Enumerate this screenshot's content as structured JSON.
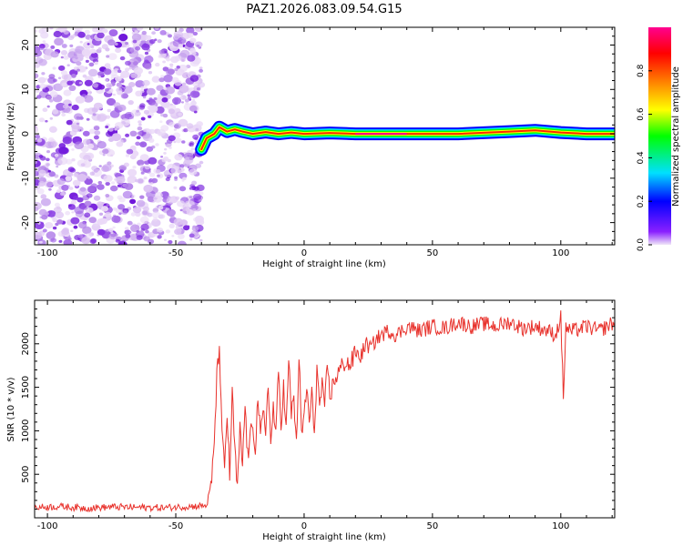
{
  "title": "PAZ1.2026.083.09.54.G15",
  "chart_data": [
    {
      "type": "heatmap",
      "name": "spectrogram",
      "xlabel": "Height of straight line (km)",
      "ylabel": "Frequency (Hz)",
      "xlim": [
        -105,
        121
      ],
      "ylim": [
        -25,
        24
      ],
      "xticks": [
        -100,
        -50,
        0,
        50,
        100
      ],
      "yticks": [
        -20,
        -10,
        0,
        10,
        20
      ],
      "description_values": {
        "noise_region_x": [
          -105,
          -40
        ],
        "signal_track": [
          [
            -40,
            -3.5
          ],
          [
            -38,
            -1
          ],
          [
            -35,
            0
          ],
          [
            -33,
            1.5
          ],
          [
            -30,
            0.5
          ],
          [
            -27,
            1
          ],
          [
            -24,
            0.5
          ],
          [
            -20,
            0
          ],
          [
            -15,
            0.4
          ],
          [
            -10,
            0
          ],
          [
            -5,
            0.3
          ],
          [
            0,
            0
          ],
          [
            10,
            0.2
          ],
          [
            20,
            0
          ],
          [
            40,
            0
          ],
          [
            60,
            0
          ],
          [
            80,
            0.5
          ],
          [
            90,
            0.8
          ],
          [
            100,
            0.3
          ],
          [
            110,
            0
          ],
          [
            121,
            0
          ]
        ]
      },
      "colorbar": {
        "label": "Normalized spectral amplitude",
        "range": [
          0.0,
          1.0
        ],
        "ticks": [
          "0.0",
          "0.2",
          "0.4",
          "0.6",
          "0.8"
        ],
        "tick_values": [
          0.0,
          0.2,
          0.4,
          0.6,
          0.8
        ],
        "colors": [
          "#f0e6f8",
          "#7a00ff",
          "#0000ff",
          "#00e0ff",
          "#00ff00",
          "#ffff00",
          "#ff8000",
          "#ff0000",
          "#ff0090"
        ]
      }
    },
    {
      "type": "line",
      "name": "snr",
      "xlabel": "Height of straight line (km)",
      "ylabel": "SNR (10 * v/v)",
      "xlim": [
        -105,
        121
      ],
      "ylim": [
        0,
        2500
      ],
      "xticks": [
        -100,
        -50,
        0,
        50,
        100
      ],
      "yticks": [
        500,
        1000,
        1500,
        2000
      ],
      "color": "#e8322c",
      "series": [
        {
          "name": "SNR",
          "x": [
            -105,
            -95,
            -85,
            -75,
            -65,
            -55,
            -45,
            -38,
            -36,
            -35,
            -34,
            -33,
            -32,
            -31,
            -30,
            -29,
            -28,
            -27,
            -26,
            -25,
            -24,
            -23,
            -22,
            -21,
            -20,
            -19,
            -18,
            -17,
            -16,
            -15,
            -14,
            -13,
            -12,
            -11,
            -10,
            -9,
            -8,
            -7,
            -6,
            -5,
            -4,
            -3,
            -2,
            -1,
            0,
            1,
            2,
            3,
            4,
            5,
            6,
            7,
            8,
            9,
            10,
            12,
            14,
            16,
            18,
            20,
            22,
            24,
            26,
            28,
            30,
            33,
            36,
            40,
            45,
            50,
            55,
            60,
            65,
            70,
            75,
            80,
            85,
            90,
            95,
            98,
            100,
            101,
            102,
            103,
            105,
            110,
            115,
            121
          ],
          "values": [
            120,
            130,
            110,
            125,
            120,
            115,
            130,
            140,
            400,
            900,
            1600,
            2000,
            900,
            600,
            1200,
            500,
            1400,
            800,
            300,
            1000,
            600,
            1300,
            700,
            900,
            1100,
            800,
            1400,
            900,
            1200,
            1000,
            1600,
            800,
            1300,
            900,
            1700,
            1100,
            1500,
            1000,
            1800,
            1200,
            1400,
            800,
            1900,
            900,
            1200,
            1500,
            1100,
            1400,
            1000,
            1700,
            1300,
            1500,
            1200,
            1800,
            1400,
            1600,
            1700,
            1800,
            1750,
            1900,
            1850,
            2000,
            1950,
            2050,
            2100,
            2150,
            2100,
            2200,
            2150,
            2200,
            2180,
            2250,
            2200,
            2230,
            2200,
            2250,
            2180,
            2200,
            2150,
            2100,
            2300,
            1400,
            2200,
            2150,
            2150,
            2200,
            2150,
            2250
          ]
        }
      ]
    }
  ]
}
